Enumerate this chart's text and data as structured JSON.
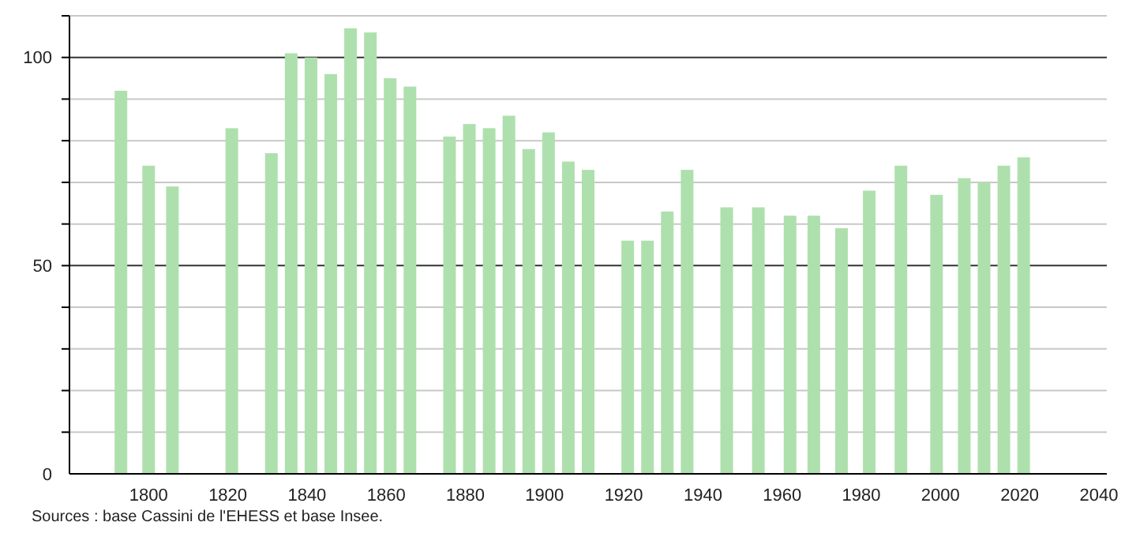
{
  "chart_data": {
    "type": "bar",
    "x": [
      1793,
      1800,
      1806,
      1821,
      1831,
      1836,
      1841,
      1846,
      1851,
      1856,
      1861,
      1866,
      1876,
      1881,
      1886,
      1891,
      1896,
      1901,
      1906,
      1911,
      1921,
      1926,
      1931,
      1936,
      1946,
      1954,
      1962,
      1968,
      1975,
      1982,
      1990,
      1999,
      2006,
      2011,
      2016,
      2021
    ],
    "values": [
      92,
      74,
      69,
      83,
      77,
      101,
      100,
      96,
      107,
      106,
      95,
      93,
      81,
      84,
      83,
      86,
      78,
      82,
      75,
      73,
      56,
      56,
      63,
      73,
      64,
      64,
      62,
      62,
      59,
      68,
      74,
      67,
      71,
      70,
      74,
      76
    ],
    "color": "#aee0ae",
    "xlim": [
      1780,
      2042
    ],
    "xticks": [
      1800,
      1820,
      1840,
      1860,
      1880,
      1900,
      1920,
      1940,
      1960,
      1980,
      2000,
      2020,
      2040
    ],
    "ylim": [
      0,
      110
    ],
    "yticks": [
      0,
      {
        "value": 10,
        "label": null
      },
      {
        "value": 20,
        "label": null
      },
      {
        "value": 30,
        "label": null
      },
      {
        "value": 40,
        "label": null
      },
      50,
      {
        "value": 60,
        "label": null
      },
      {
        "value": 70,
        "label": null
      },
      {
        "value": 80,
        "label": null
      },
      {
        "value": 90,
        "label": null
      },
      100,
      {
        "value": 110,
        "label": null
      }
    ],
    "grid": "y",
    "annotations": [
      "Sources : base Cassini de l'EHESS et base Insee."
    ]
  }
}
